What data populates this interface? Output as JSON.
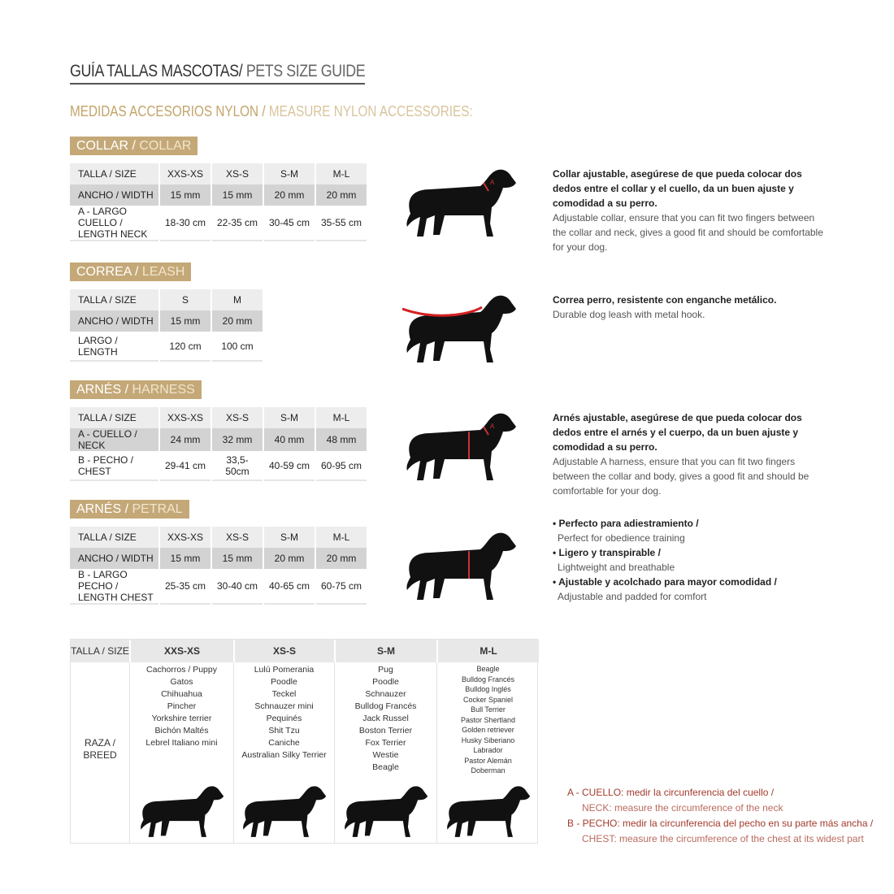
{
  "title": {
    "es": "GUÍA TALLAS MASCOTAS/",
    "en": " PETS SIZE GUIDE"
  },
  "subtitle": {
    "es": "MEDIDAS ACCESORIOS NYLON /",
    "en": " MEASURE NYLON ACCESSORIES:"
  },
  "colors": {
    "gold": "#c4a877",
    "red": "#a23a2c",
    "leash": "#d42020"
  },
  "collar": {
    "tag_es": "COLLAR /",
    "tag_en": " COLLAR",
    "rows": [
      [
        "TALLA / SIZE",
        "XXS-XS",
        "XS-S",
        "S-M",
        "M-L"
      ],
      [
        "ANCHO / WIDTH",
        "15 mm",
        "15 mm",
        "20 mm",
        "20 mm"
      ],
      [
        "A - LARGO CUELLO / LENGTH NECK",
        "18-30 cm",
        "22-35 cm",
        "30-45 cm",
        "35-55 cm"
      ]
    ],
    "desc_es": "Collar ajustable, asegúrese de que pueda colocar dos dedos entre el collar y el cuello, da un buen ajuste y comodidad a su perro.",
    "desc_en": "Adjustable collar, ensure that you can fit two fingers between the collar and neck, gives a good fit and should be comfortable for your dog."
  },
  "leash": {
    "tag_es": "CORREA /",
    "tag_en": " LEASH",
    "rows": [
      [
        "TALLA / SIZE",
        "S",
        "M"
      ],
      [
        "ANCHO / WIDTH",
        "15 mm",
        "20 mm"
      ],
      [
        "LARGO / LENGTH",
        "120 cm",
        "100 cm"
      ]
    ],
    "desc_es": "Correa perro, resistente con enganche metálico.",
    "desc_en": "Durable dog leash with metal hook."
  },
  "harness": {
    "tag_es": "ARNÉS /",
    "tag_en": " HARNESS",
    "rows": [
      [
        "TALLA / SIZE",
        "XXS-XS",
        "XS-S",
        "S-M",
        "M-L"
      ],
      [
        "A - CUELLO / NECK",
        "24 mm",
        "32 mm",
        "40 mm",
        "48 mm"
      ],
      [
        "B - PECHO / CHEST",
        "29-41 cm",
        "33,5-50cm",
        "40-59 cm",
        "60-95 cm"
      ]
    ],
    "desc_es": "Arnés ajustable, asegúrese de que pueda colocar dos dedos entre el arnés y el cuerpo, da un buen ajuste y comodidad a su perro.",
    "desc_en": "Adjustable A harness, ensure that you can fit two fingers between the collar and body, gives a good fit and should be comfortable for your dog."
  },
  "petral": {
    "tag_es": "ARNÉS /",
    "tag_en": " PETRAL",
    "rows": [
      [
        "TALLA / SIZE",
        "XXS-XS",
        "XS-S",
        "S-M",
        "M-L"
      ],
      [
        "ANCHO / WIDTH",
        "15 mm",
        "15 mm",
        "20 mm",
        "20 mm"
      ],
      [
        "B - LARGO PECHO / LENGTH CHEST",
        "25-35 cm",
        "30-40 cm",
        "40-65 cm",
        "60-75 cm"
      ]
    ],
    "bullets": [
      {
        "es": "• Perfecto para adiestramiento /",
        "en": "Perfect for obedience training"
      },
      {
        "es": "• Ligero y transpirable /",
        "en": "Lightweight and breathable"
      },
      {
        "es": "• Ajustable y acolchado para mayor comodidad /",
        "en": "Adjustable and padded for comfort"
      }
    ]
  },
  "breeds": {
    "size_label": "TALLA /  SIZE",
    "breed_label": "RAZA / BREED",
    "columns": [
      {
        "size": "XXS-XS",
        "list": [
          "Cachorros / Puppy",
          "Gatos",
          "Chihuahua",
          "Pincher",
          "Yorkshire terrier",
          "Bichón Maltés",
          "Lebrel Italiano mini"
        ]
      },
      {
        "size": "XS-S",
        "list": [
          "Lulú Pomerania",
          "Poodle",
          "Teckel",
          "Schnauzer mini",
          "Pequinés",
          "Shit Tzu",
          "Caniche",
          "Australian Silky Terrier"
        ]
      },
      {
        "size": "S-M",
        "list": [
          "Pug",
          "Poodle",
          "Schnauzer",
          "Bulldog Francés",
          "Jack Russel",
          "Boston Terrier",
          "Fox Terrier",
          "Westie",
          "Beagle"
        ]
      },
      {
        "size": "M-L",
        "list": [
          "Beagle",
          "Bulldog Francés",
          "Bulldog Inglés",
          "Cocker Spaniel",
          "Bull Terrier",
          "Pastor Shertland",
          "Golden retriever",
          "Husky Siberiano",
          "Labrador",
          "Pastor Alemán",
          "Doberman"
        ]
      }
    ]
  },
  "notes": [
    {
      "es": "A - CUELLO: medir la circunferencia del cuello /",
      "en": "NECK: measure the circumference of the neck"
    },
    {
      "es": "B - PECHO: medir la circunferencia del pecho en su parte más ancha /",
      "en": "CHEST: measure the circumference of the chest at its widest part"
    }
  ]
}
